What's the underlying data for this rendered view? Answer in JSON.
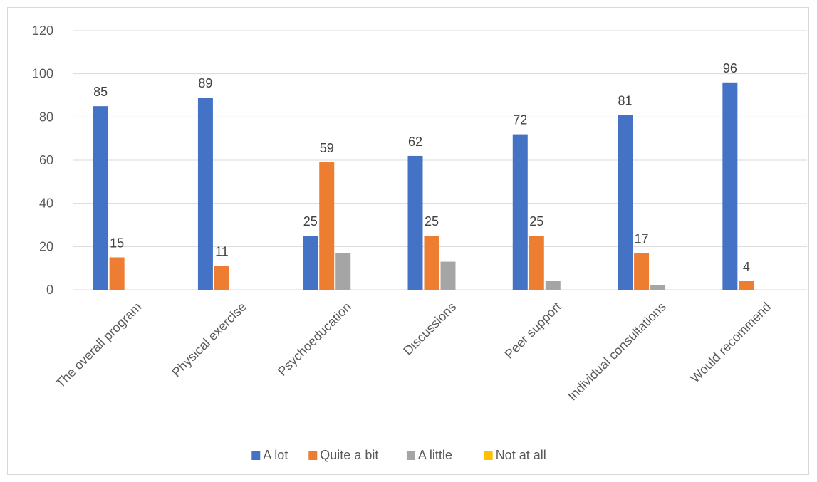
{
  "chart_data": {
    "type": "bar",
    "categories": [
      "The overall program",
      "Physical exercise",
      "Psychoeducation",
      "Discussions",
      "Peer support",
      "Individual consultations",
      "Would recommend"
    ],
    "series": [
      {
        "name": "A lot",
        "color": "#4472C4",
        "values": [
          85,
          89,
          25,
          62,
          72,
          81,
          96
        ],
        "labels_shown": [
          true,
          true,
          true,
          true,
          true,
          true,
          true
        ]
      },
      {
        "name": "Quite a bit",
        "color": "#ED7D31",
        "values": [
          15,
          11,
          59,
          25,
          25,
          17,
          4
        ],
        "labels_shown": [
          true,
          true,
          true,
          true,
          true,
          true,
          true
        ]
      },
      {
        "name": "A little",
        "color": "#A5A5A5",
        "values": [
          0,
          0,
          17,
          13,
          4,
          2,
          0
        ],
        "labels_shown": [
          false,
          false,
          false,
          false,
          false,
          false,
          false
        ]
      },
      {
        "name": "Not at all",
        "color": "#FFC000",
        "values": [
          0,
          0,
          0,
          0,
          0,
          0,
          0
        ],
        "labels_shown": [
          false,
          false,
          false,
          false,
          false,
          false,
          false
        ]
      }
    ],
    "yticks": [
      0,
      20,
      40,
      60,
      80,
      100,
      120
    ],
    "ylim": [
      0,
      120
    ],
    "grid": true,
    "legend_position": "bottom",
    "gridline_color": "#d9d9d9",
    "axis_color": "#d9d9d9"
  }
}
